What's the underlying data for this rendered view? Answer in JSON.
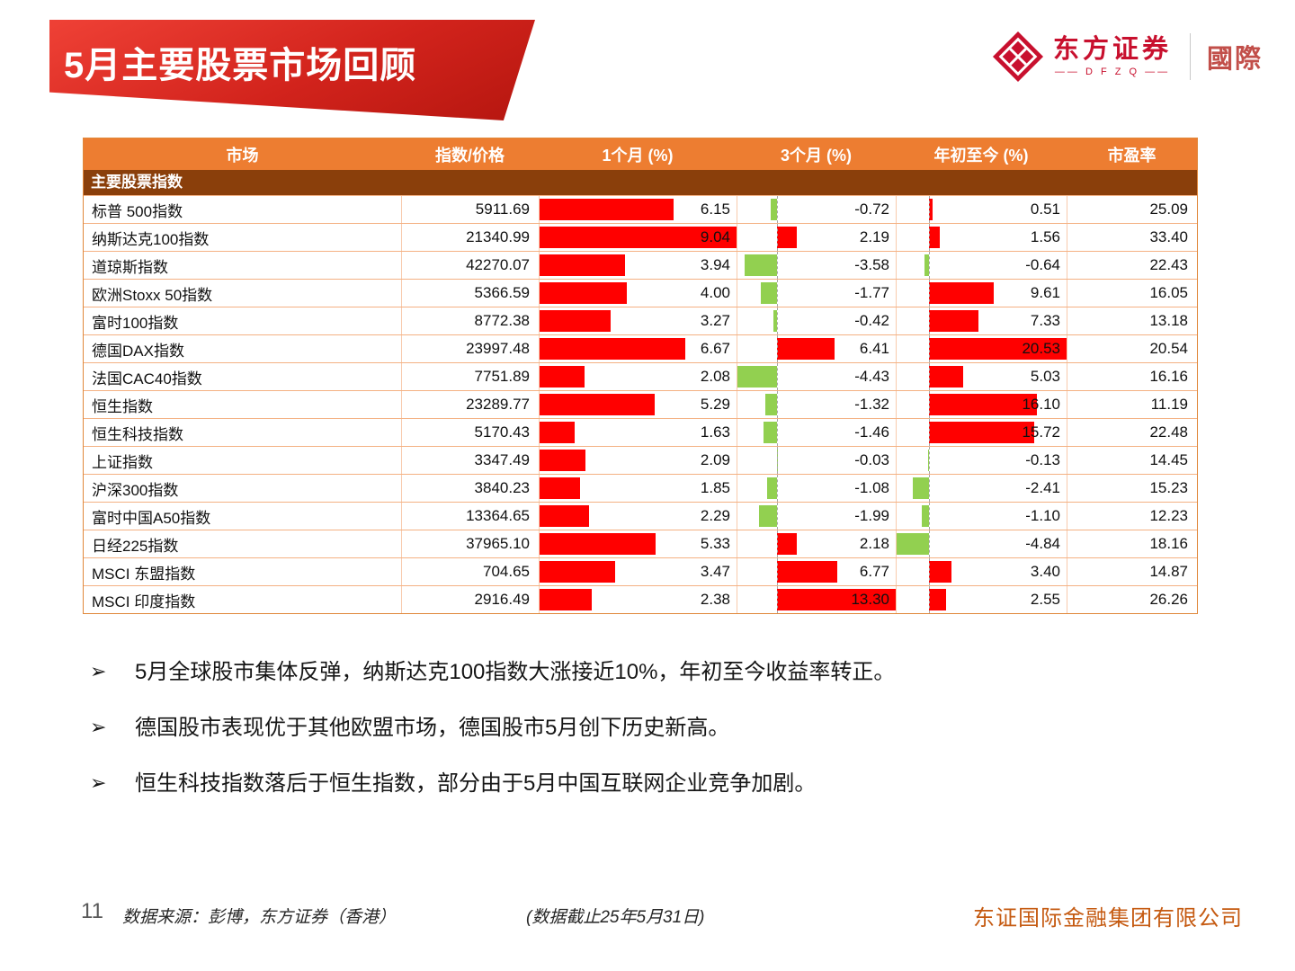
{
  "slide": {
    "title": "5月主要股票市场回顾",
    "page_number": "11",
    "bullet_marker": "➢",
    "bullets": [
      "5月全球股市集体反弹，纳斯达克100指数大涨接近10%，年初至今收益率转正。",
      "德国股市表现优于其他欧盟市场，德国股市5月创下历史新高。",
      "恒生科技指数落后于恒生指数，部分由于5月中国互联网企业竞争加剧。"
    ],
    "footer": {
      "source": "数据来源：彭博，东方证券（香港）",
      "cutoff": "(数据截止25年5月31日)",
      "company": "东证国际金融集团有限公司"
    },
    "logo": {
      "brand": "东方证券",
      "brand_sub": "—— D F Z Q ——",
      "region": "國際"
    }
  },
  "chart_data": {
    "type": "table",
    "title": "5月主要股票市场回顾",
    "section": "主要股票指数",
    "columns": [
      "市场",
      "指数/价格",
      "1个月 (%)",
      "3个月 (%)",
      "年初至今 (%)",
      "市盈率"
    ],
    "bar_columns": [
      "1个月 (%)",
      "3个月 (%)",
      "年初至今 (%)"
    ],
    "bar_colors": {
      "positive": "#FF0000",
      "negative": "#92D050"
    },
    "rows": [
      {
        "market": "标普 500指数",
        "price": 5911.69,
        "m1": 6.15,
        "m3": -0.72,
        "ytd": 0.51,
        "pe": 25.09
      },
      {
        "market": "纳斯达克100指数",
        "price": 21340.99,
        "m1": 9.04,
        "m3": 2.19,
        "ytd": 1.56,
        "pe": 33.4
      },
      {
        "market": "道琼斯指数",
        "price": 42270.07,
        "m1": 3.94,
        "m3": -3.58,
        "ytd": -0.64,
        "pe": 22.43
      },
      {
        "market": "欧洲Stoxx 50指数",
        "price": 5366.59,
        "m1": 4.0,
        "m3": -1.77,
        "ytd": 9.61,
        "pe": 16.05
      },
      {
        "market": "富时100指数",
        "price": 8772.38,
        "m1": 3.27,
        "m3": -0.42,
        "ytd": 7.33,
        "pe": 13.18
      },
      {
        "market": "德国DAX指数",
        "price": 23997.48,
        "m1": 6.67,
        "m3": 6.41,
        "ytd": 20.53,
        "pe": 20.54
      },
      {
        "market": "法国CAC40指数",
        "price": 7751.89,
        "m1": 2.08,
        "m3": -4.43,
        "ytd": 5.03,
        "pe": 16.16
      },
      {
        "market": "恒生指数",
        "price": 23289.77,
        "m1": 5.29,
        "m3": -1.32,
        "ytd": 16.1,
        "pe": 11.19
      },
      {
        "market": "恒生科技指数",
        "price": 5170.43,
        "m1": 1.63,
        "m3": -1.46,
        "ytd": 15.72,
        "pe": 22.48
      },
      {
        "market": "上证指数",
        "price": 3347.49,
        "m1": 2.09,
        "m3": -0.03,
        "ytd": -0.13,
        "pe": 14.45
      },
      {
        "market": "沪深300指数",
        "price": 3840.23,
        "m1": 1.85,
        "m3": -1.08,
        "ytd": -2.41,
        "pe": 15.23
      },
      {
        "market": "富时中国A50指数",
        "price": 13364.65,
        "m1": 2.29,
        "m3": -1.99,
        "ytd": -1.1,
        "pe": 12.23
      },
      {
        "market": "日经225指数",
        "price": 37965.1,
        "m1": 5.33,
        "m3": 2.18,
        "ytd": -4.84,
        "pe": 18.16
      },
      {
        "market": "MSCI 东盟指数",
        "price": 704.65,
        "m1": 3.47,
        "m3": 6.77,
        "ytd": 3.4,
        "pe": 14.87
      },
      {
        "market": "MSCI 印度指数",
        "price": 2916.49,
        "m1": 2.38,
        "m3": 13.3,
        "ytd": 2.55,
        "pe": 26.26
      }
    ]
  }
}
